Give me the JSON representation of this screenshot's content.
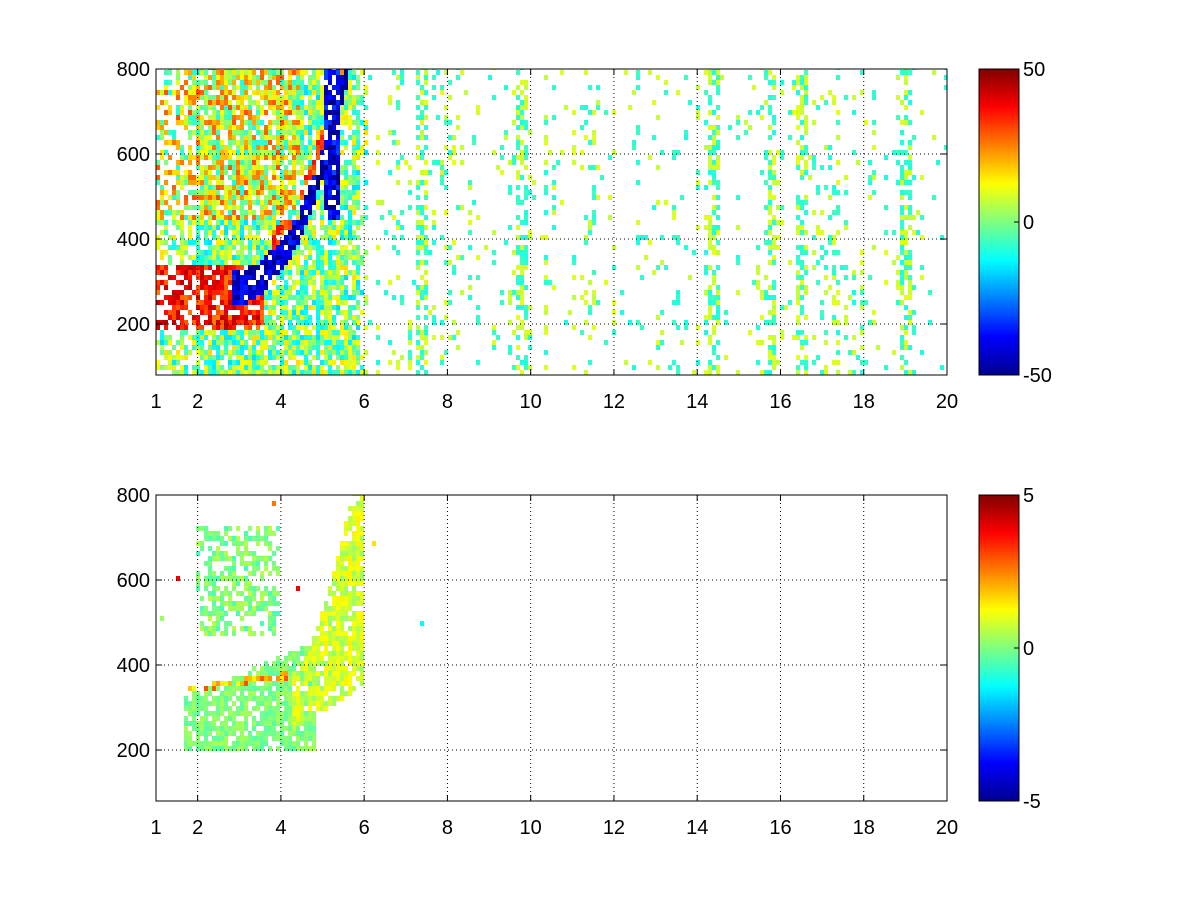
{
  "chart_data": [
    {
      "type": "heatmap",
      "title": "",
      "xlabel": "",
      "ylabel": "",
      "xlim": [
        1,
        20
      ],
      "ylim": [
        80,
        800
      ],
      "x_ticks": [
        "1",
        "2",
        "4",
        "6",
        "8",
        "10",
        "12",
        "14",
        "16",
        "18",
        "20"
      ],
      "x_tick_values": [
        1,
        2,
        4,
        6,
        8,
        10,
        12,
        14,
        16,
        18,
        20
      ],
      "y_ticks": [
        "200",
        "400",
        "600",
        "800"
      ],
      "y_tick_values": [
        200,
        400,
        600,
        800
      ],
      "grid": true,
      "colormap": "jet",
      "colorbar": {
        "min": -50,
        "max": 50,
        "ticks": [
          "50",
          "0",
          "-50"
        ],
        "tick_values": [
          50,
          0,
          -50
        ]
      },
      "features": [
        {
          "x": [
            1.5,
            3.5
          ],
          "y": [
            200,
            330
          ],
          "value": 40,
          "desc": "positive band"
        },
        {
          "x": [
            3.0,
            4.6
          ],
          "y": [
            280,
            380
          ],
          "value": -45,
          "desc": "negative curved band"
        },
        {
          "x": [
            4.5,
            6.0
          ],
          "y": [
            250,
            800
          ],
          "value": -45,
          "desc": "rising negative band"
        },
        {
          "x": [
            4.0,
            5.9
          ],
          "y": [
            350,
            800
          ],
          "value": 30,
          "desc": "rising positive ridge"
        },
        {
          "x": [
            1.5,
            5.5
          ],
          "y": [
            450,
            800
          ],
          "value": 8,
          "desc": "upper mixed region"
        },
        {
          "x": [
            6,
            20
          ],
          "y": [
            80,
            800
          ],
          "value": 0,
          "desc": "sparse near-zero columns"
        }
      ]
    },
    {
      "type": "heatmap",
      "title": "",
      "xlabel": "",
      "ylabel": "",
      "xlim": [
        1,
        20
      ],
      "ylim": [
        80,
        800
      ],
      "x_ticks": [
        "1",
        "2",
        "4",
        "6",
        "8",
        "10",
        "12",
        "14",
        "16",
        "18",
        "20"
      ],
      "x_tick_values": [
        1,
        2,
        4,
        6,
        8,
        10,
        12,
        14,
        16,
        18,
        20
      ],
      "y_ticks": [
        "200",
        "400",
        "600",
        "800"
      ],
      "y_tick_values": [
        200,
        400,
        600,
        800
      ],
      "grid": true,
      "colormap": "jet",
      "colorbar": {
        "min": -5,
        "max": 5,
        "ticks": [
          "5",
          "0",
          "-5"
        ],
        "tick_values": [
          5,
          0,
          -5
        ]
      },
      "features": [
        {
          "x": [
            1.6,
            4.5
          ],
          "y": [
            200,
            380
          ],
          "value": 0,
          "desc": "lower cluster near zero"
        },
        {
          "x": [
            2.0,
            3.8
          ],
          "y": [
            480,
            720
          ],
          "value": 0,
          "desc": "upper cluster near zero"
        },
        {
          "x": [
            4.5,
            6.0
          ],
          "y": [
            300,
            800
          ],
          "value": 0.3,
          "desc": "rising band near zero"
        },
        {
          "x": [
            1.8,
            4.2
          ],
          "y": [
            330,
            350
          ],
          "value": 2,
          "desc": "thin positive streak"
        }
      ]
    }
  ]
}
